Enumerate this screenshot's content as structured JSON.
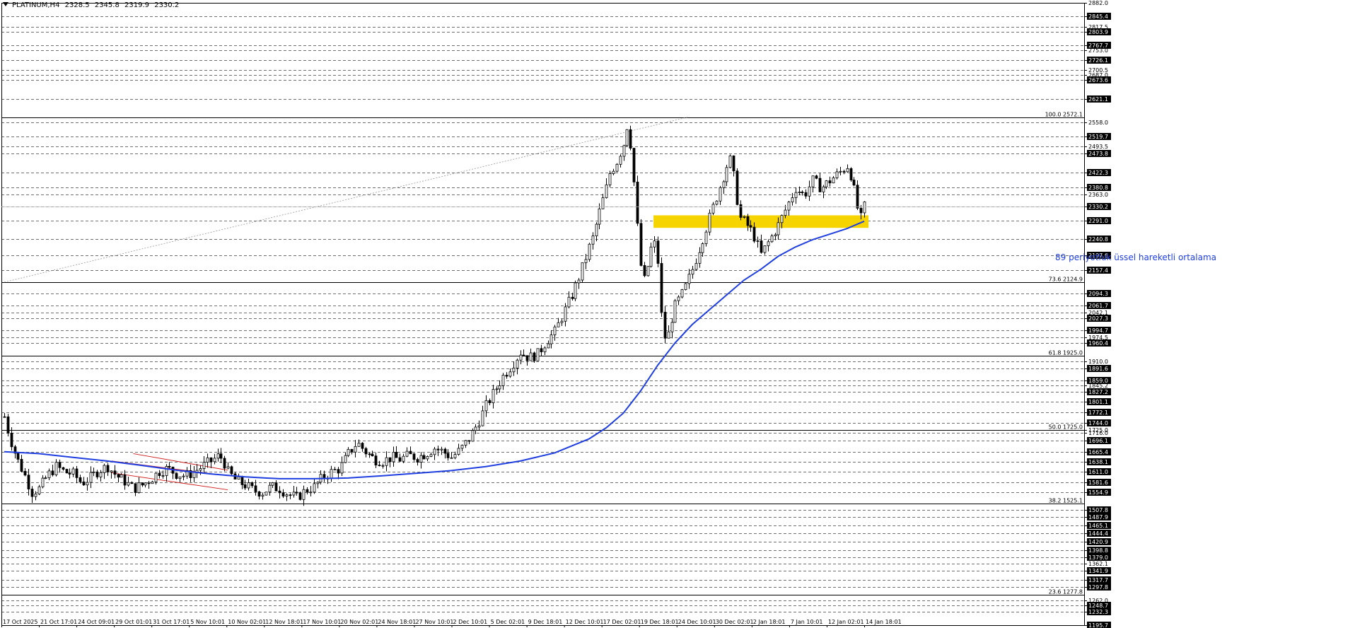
{
  "header": {
    "symbol": "PLATINUM,H4",
    "open": "2328.5",
    "high": "2345.8",
    "low": "2319.9",
    "close": "2330.2"
  },
  "annotation": "89 periyotluk üssel hareketli ortalama",
  "colors": {
    "background": "#ffffff",
    "candles": "#000000",
    "ema": "#1f3fe0",
    "support_zone": "#f5d400",
    "channel": "#d02020",
    "price_label_bg": "#000000",
    "price_label_text": "#ffffff",
    "grid": "#000000"
  },
  "chart_data": {
    "type": "candlestick",
    "symbol": "PLATINUM",
    "timeframe": "H4",
    "ylim": [
      1195.0,
      2882.0
    ],
    "grid": "dashed horizontal lines at price levels",
    "y_ticks": [
      "2882.0",
      "2845.4",
      "2817.5",
      "2803.9",
      "2767.7",
      "2753.0",
      "2726.1",
      "2700.5",
      "2687.0",
      "2673.6",
      "2621.1",
      "2558.0",
      "2519.7",
      "2493.5",
      "2473.8",
      "2422.3",
      "2380.8",
      "2363.0",
      "2330.2",
      "2291.0",
      "2240.8",
      "2197.6",
      "2157.4",
      "2094.3",
      "2061.7",
      "2042.1",
      "2027.3",
      "1994.7",
      "1974.5",
      "1960.4",
      "1910.0",
      "1891.6",
      "1859.0",
      "1845.2",
      "1827.2",
      "1801.1",
      "1772.1",
      "1744.0",
      "1725.0",
      "1716.0",
      "1696.1",
      "1665.4",
      "1638.1",
      "1611.0",
      "1581.6",
      "1554.9",
      "1507.8",
      "1487.9",
      "1465.1",
      "1444.4",
      "1420.9",
      "1398.8",
      "1379.0",
      "1362.1",
      "1341.9",
      "1317.7",
      "1297.8",
      "1262.0",
      "1248.7",
      "1232.3",
      "1195.7"
    ],
    "highlighted_ticks": [
      "2845.4",
      "2803.9",
      "2767.7",
      "2726.1",
      "2673.6",
      "2621.1",
      "2519.7",
      "2473.8",
      "2422.3",
      "2380.8",
      "2330.2",
      "2291.0",
      "2240.8",
      "2197.6",
      "2157.4",
      "2094.3",
      "2061.7",
      "2027.3",
      "1994.7",
      "1960.4",
      "1891.6",
      "1859.0",
      "1827.2",
      "1801.1",
      "1772.1",
      "1744.0",
      "1696.1",
      "1665.4",
      "1638.1",
      "1611.0",
      "1581.6",
      "1554.9",
      "1507.8",
      "1487.9",
      "1465.1",
      "1444.4",
      "1420.9",
      "1398.8",
      "1379.0",
      "1341.9",
      "1317.7",
      "1297.8",
      "1248.7",
      "1232.3",
      "1195.7"
    ],
    "x_tick_labels": [
      "17 Oct 2025",
      "21 Oct 17:01",
      "24 Oct 09:01",
      "29 Oct 01:01",
      "31 Oct 17:01",
      "5 Nov 10:01",
      "10 Nov 02:01",
      "12 Nov 18:01",
      "17 Nov 10:01",
      "20 Nov 02:01",
      "24 Nov 18:01",
      "27 Nov 10:01",
      "2 Dec 10:01",
      "5 Dec 02:01",
      "9 Dec 18:01",
      "12 Dec 10:01",
      "17 Dec 02:01",
      "19 Dec 18:01",
      "24 Dec 10:01",
      "30 Dec 02:01",
      "2 Jan 18:01",
      "7 Jan 10:01",
      "12 Jan 02:01",
      "14 Jan 18:01"
    ],
    "fibonacci": [
      {
        "level": "100.0",
        "price": 2572.1
      },
      {
        "level": "73.6",
        "price": 2124.9
      },
      {
        "level": "61.8",
        "price": 1925.0
      },
      {
        "level": "50.0",
        "price": 1725.0
      },
      {
        "level": "38.2",
        "price": 1525.1
      },
      {
        "level": "23.6",
        "price": 1277.8
      }
    ],
    "support_zone": {
      "from": 2272.0,
      "to": 2306.0
    },
    "current_price": 2330.2,
    "close_path": [
      [
        0,
        1760
      ],
      [
        6,
        1705
      ],
      [
        14,
        1650
      ],
      [
        24,
        1600
      ],
      [
        32,
        1555
      ],
      [
        40,
        1565
      ],
      [
        50,
        1600
      ],
      [
        60,
        1625
      ],
      [
        70,
        1610
      ],
      [
        80,
        1605
      ],
      [
        90,
        1580
      ],
      [
        100,
        1595
      ],
      [
        110,
        1615
      ],
      [
        120,
        1625
      ],
      [
        130,
        1600
      ],
      [
        140,
        1585
      ],
      [
        150,
        1565
      ],
      [
        160,
        1575
      ],
      [
        170,
        1590
      ],
      [
        180,
        1612
      ],
      [
        190,
        1620
      ],
      [
        200,
        1605
      ],
      [
        210,
        1600
      ],
      [
        220,
        1610
      ],
      [
        230,
        1625
      ],
      [
        240,
        1640
      ],
      [
        250,
        1655
      ],
      [
        255,
        1640
      ],
      [
        260,
        1610
      ],
      [
        270,
        1585
      ],
      [
        280,
        1575
      ],
      [
        290,
        1560
      ],
      [
        300,
        1555
      ],
      [
        310,
        1570
      ],
      [
        320,
        1565
      ],
      [
        330,
        1550
      ],
      [
        340,
        1540
      ],
      [
        350,
        1560
      ],
      [
        360,
        1570
      ],
      [
        370,
        1595
      ],
      [
        380,
        1610
      ],
      [
        390,
        1620
      ],
      [
        400,
        1660
      ],
      [
        410,
        1690
      ],
      [
        420,
        1665
      ],
      [
        430,
        1645
      ],
      [
        440,
        1640
      ],
      [
        450,
        1650
      ],
      [
        460,
        1645
      ],
      [
        470,
        1655
      ],
      [
        480,
        1650
      ],
      [
        490,
        1660
      ],
      [
        500,
        1675
      ],
      [
        510,
        1665
      ],
      [
        520,
        1650
      ],
      [
        530,
        1670
      ],
      [
        540,
        1700
      ],
      [
        550,
        1740
      ],
      [
        560,
        1790
      ],
      [
        570,
        1830
      ],
      [
        580,
        1870
      ],
      [
        590,
        1900
      ],
      [
        600,
        1935
      ],
      [
        610,
        1920
      ],
      [
        620,
        1930
      ],
      [
        630,
        1965
      ],
      [
        640,
        1990
      ],
      [
        650,
        2040
      ],
      [
        660,
        2090
      ],
      [
        670,
        2150
      ],
      [
        680,
        2220
      ],
      [
        685,
        2250
      ],
      [
        690,
        2300
      ],
      [
        700,
        2380
      ],
      [
        705,
        2430
      ],
      [
        710,
        2440
      ],
      [
        720,
        2500
      ],
      [
        725,
        2560
      ],
      [
        730,
        2460
      ],
      [
        735,
        2300
      ],
      [
        740,
        2170
      ],
      [
        745,
        2120
      ],
      [
        750,
        2200
      ],
      [
        755,
        2240
      ],
      [
        760,
        2180
      ],
      [
        765,
        2000
      ],
      [
        770,
        1960
      ],
      [
        775,
        2020
      ],
      [
        780,
        2060
      ],
      [
        790,
        2100
      ],
      [
        800,
        2160
      ],
      [
        810,
        2230
      ],
      [
        820,
        2300
      ],
      [
        830,
        2370
      ],
      [
        840,
        2440
      ],
      [
        845,
        2460
      ],
      [
        850,
        2380
      ],
      [
        855,
        2300
      ],
      [
        860,
        2290
      ],
      [
        870,
        2260
      ],
      [
        880,
        2200
      ],
      [
        890,
        2240
      ],
      [
        900,
        2280
      ],
      [
        910,
        2330
      ],
      [
        920,
        2380
      ],
      [
        930,
        2360
      ],
      [
        940,
        2400
      ],
      [
        950,
        2380
      ],
      [
        960,
        2400
      ],
      [
        970,
        2420
      ],
      [
        980,
        2440
      ],
      [
        985,
        2410
      ],
      [
        990,
        2350
      ],
      [
        995,
        2290
      ],
      [
        1000,
        2330
      ]
    ],
    "ema_path": [
      [
        0,
        1665
      ],
      [
        40,
        1660
      ],
      [
        80,
        1650
      ],
      [
        120,
        1640
      ],
      [
        160,
        1628
      ],
      [
        200,
        1615
      ],
      [
        240,
        1605
      ],
      [
        280,
        1597
      ],
      [
        320,
        1592
      ],
      [
        360,
        1592
      ],
      [
        400,
        1594
      ],
      [
        440,
        1600
      ],
      [
        480,
        1607
      ],
      [
        520,
        1614
      ],
      [
        560,
        1625
      ],
      [
        600,
        1640
      ],
      [
        640,
        1662
      ],
      [
        680,
        1700
      ],
      [
        700,
        1730
      ],
      [
        720,
        1770
      ],
      [
        740,
        1830
      ],
      [
        760,
        1900
      ],
      [
        780,
        1960
      ],
      [
        800,
        2010
      ],
      [
        820,
        2050
      ],
      [
        840,
        2090
      ],
      [
        860,
        2130
      ],
      [
        880,
        2160
      ],
      [
        900,
        2195
      ],
      [
        920,
        2220
      ],
      [
        940,
        2240
      ],
      [
        960,
        2255
      ],
      [
        980,
        2270
      ],
      [
        1000,
        2290
      ]
    ],
    "channel_lines": [
      [
        [
          125,
          1608
        ],
        [
          260,
          1562
        ]
      ],
      [
        [
          125,
          1640
        ],
        [
          260,
          1600
        ]
      ],
      [
        [
          150,
          1660
        ],
        [
          260,
          1615
        ]
      ]
    ],
    "diagonal_line": [
      [
        0,
        2124.9
      ],
      [
        795,
        2572.1
      ]
    ]
  }
}
